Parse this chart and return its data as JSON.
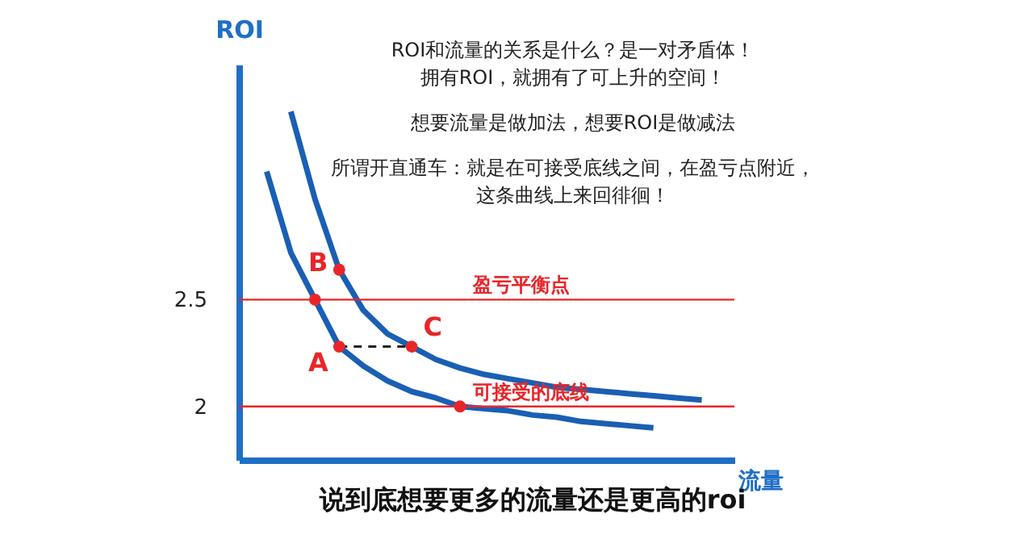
{
  "chart_data": {
    "type": "line",
    "ylabel": "ROI",
    "xlabel": "流量",
    "annotations": [
      "ROI和流量的关系是什么？是一对矛盾体！",
      "拥有ROI，就拥有了可上升的空间！",
      "想要流量是做加法，想要ROI是做减法",
      "所谓开直通车：就是在可接受底线之间，在盈亏点附近，",
      "这条曲线上来回徘徊！",
      "说到底想要更多的流量还是更高的roi"
    ],
    "categories": [
      null,
      null,
      null,
      null,
      null,
      null,
      null,
      null,
      null,
      null,
      null,
      null,
      null,
      null,
      null,
      null,
      null,
      null,
      null,
      null,
      null
    ],
    "series": [
      {
        "color": "#1a5fb4",
        "values": [
          null,
          3.1,
          2.72,
          2.5,
          2.28,
          2.19,
          2.12,
          2.07,
          2.04,
          2.0,
          1.99,
          1.98,
          1.96,
          1.95,
          1.93,
          1.92,
          1.91,
          1.9,
          null,
          null,
          null
        ]
      },
      {
        "color": "#1a5fb4",
        "values": [
          null,
          null,
          3.38,
          2.97,
          2.64,
          2.45,
          2.34,
          2.28,
          2.22,
          2.18,
          2.15,
          2.13,
          2.11,
          2.09,
          2.08,
          2.07,
          2.06,
          2.05,
          2.04,
          2.03,
          null
        ]
      },
      {
        "color": "#222222",
        "line_style": "dashed",
        "values": [
          null,
          null,
          null,
          null,
          2.28,
          2.28,
          2.28,
          2.28,
          null,
          null,
          null,
          null,
          null,
          null,
          null,
          null,
          null,
          null,
          null,
          null,
          null
        ]
      },
      {
        "type": "scatter",
        "color": "#e8262a",
        "marker": "circle",
        "values": [
          null,
          null,
          null,
          2.5,
          2.28,
          null,
          null,
          2.28,
          null,
          2.0,
          null,
          null,
          null,
          null,
          null,
          null,
          null,
          null,
          null,
          null,
          null
        ],
        "value_labels": [
          null,
          null,
          null,
          null,
          "A",
          null,
          null,
          "C",
          null,
          null,
          null,
          null,
          null,
          null,
          null,
          null,
          null,
          null,
          null,
          null,
          null
        ]
      },
      {
        "type": "scatter",
        "color": "#e8262a",
        "marker": "circle",
        "values": [
          null,
          null,
          null,
          null,
          2.64,
          null,
          null,
          null,
          null,
          null,
          null,
          null,
          null,
          null,
          null,
          null,
          null,
          null,
          null,
          null,
          null
        ],
        "value_labels": [
          null,
          null,
          null,
          null,
          "B",
          null,
          null,
          null,
          null,
          null,
          null,
          null,
          null,
          null,
          null,
          null,
          null,
          null,
          null,
          null,
          null
        ]
      }
    ],
    "ylim": [
      1.75,
      3.6
    ],
    "yticks": [
      2,
      2.5
    ],
    "ref_lines": [
      {
        "axis": "y",
        "value": 2.5,
        "label": "盈亏平衡点",
        "color": "#e8262a"
      },
      {
        "axis": "y",
        "value": 2,
        "label": "可接受的底线",
        "color": "#e8262a"
      }
    ],
    "tick_labels": "y",
    "grid": false
  }
}
